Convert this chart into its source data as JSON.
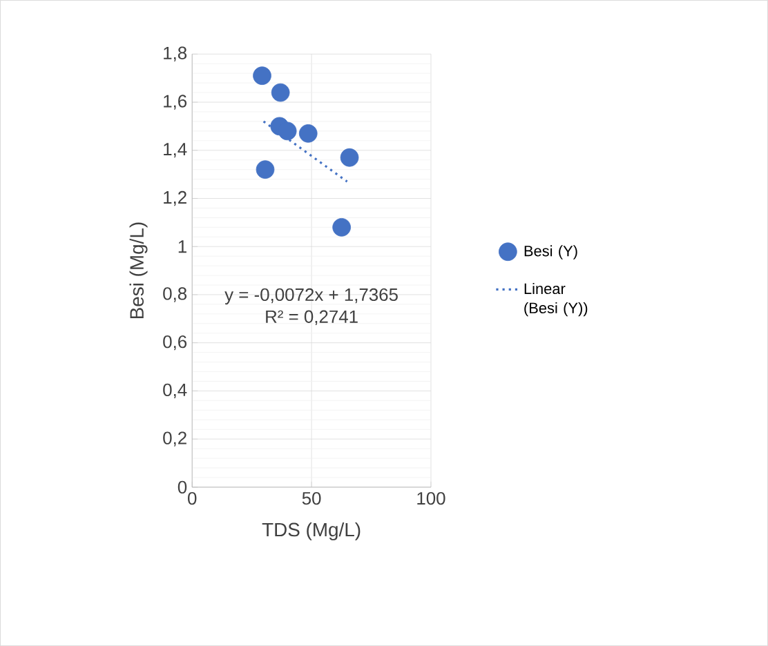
{
  "chart_data": {
    "type": "scatter",
    "xlabel": "TDS (Mg/L)",
    "ylabel": "Besi (Mg/L)",
    "xlim": [
      0,
      100
    ],
    "xticks": [
      0,
      50,
      100
    ],
    "ylim": [
      0,
      1.8
    ],
    "yticks": [
      0,
      {
        "value": 0.2,
        "label": "0,2"
      },
      {
        "value": 0.4,
        "label": "0,4"
      },
      {
        "value": 0.6,
        "label": "0,6"
      },
      {
        "value": 0.8,
        "label": "0,8"
      },
      1,
      {
        "value": 1.2,
        "label": "1,2"
      },
      {
        "value": 1.4,
        "label": "1,4"
      },
      {
        "value": 1.6,
        "label": "1,6"
      },
      {
        "value": 1.8,
        "label": "1,8"
      }
    ],
    "grid": true,
    "legend": "right",
    "series": [
      {
        "name": "Besi (Y)",
        "color": "#4472c4",
        "marker": "circle",
        "x": [
          29.3,
          37.0,
          36.6,
          39.9,
          48.6,
          30.6,
          65.9,
          62.6
        ],
        "values": [
          1.71,
          1.64,
          1.5,
          1.48,
          1.47,
          1.32,
          1.37,
          1.08
        ]
      },
      {
        "name": "Linear (Besi (Y))",
        "type": "line",
        "line_style": "dotted",
        "color": "#4472c4",
        "x": [
          29.9,
          64.9
        ],
        "values": [
          1.52,
          1.27
        ]
      }
    ],
    "annotations": [
      "y = -0,0072x + 1,7365",
      "R² = 0,2741"
    ]
  }
}
